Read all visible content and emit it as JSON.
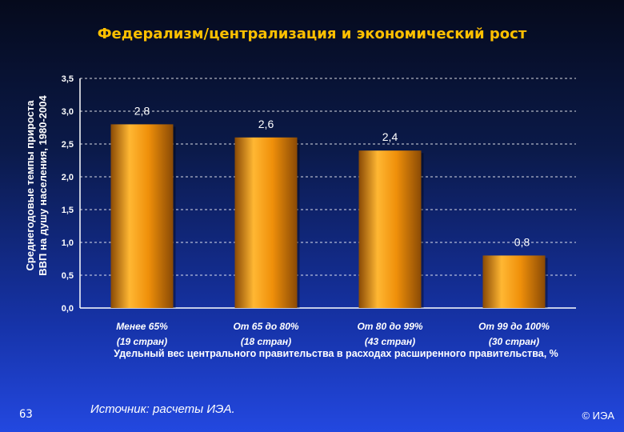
{
  "slide": {
    "page_number": "63",
    "source": "Источник:  расчеты ИЭА.",
    "copyright": "© ИЭА"
  },
  "chart_data": {
    "type": "bar",
    "title": "Федерализм/централизация и экономический рост",
    "ylabel_lines": [
      "Среднегодовые темпы прироста",
      "ВВП на душу населения, 1980-2004"
    ],
    "xlabel": "Удельный вес центрального правительства в расходах расширенного правительства, %",
    "categories": [
      [
        "Менее 65%",
        "(19 стран)"
      ],
      [
        "От 65 до 80%",
        "(18 стран)"
      ],
      [
        "От 80 до 99%",
        "(43 стран)"
      ],
      [
        "От 99 до 100%",
        "(30 стран)"
      ]
    ],
    "values": [
      2.8,
      2.6,
      2.4,
      0.8
    ],
    "value_labels": [
      "2,8",
      "2,6",
      "2,4",
      "0,8"
    ],
    "ylim": [
      0,
      3.5
    ],
    "yticks": [
      0,
      0.5,
      1.0,
      1.5,
      2.0,
      2.5,
      3.0,
      3.5
    ],
    "ytick_labels": [
      "0,0",
      "0,5",
      "1,0",
      "1,5",
      "2,0",
      "2,5",
      "3,0",
      "3,5"
    ],
    "grid": true,
    "colors": {
      "bar": "#f0900a",
      "bar_dark": "#8a4a05",
      "bar_light": "#ffb733",
      "grid": "#ffffff",
      "title": "#ffc000"
    }
  }
}
